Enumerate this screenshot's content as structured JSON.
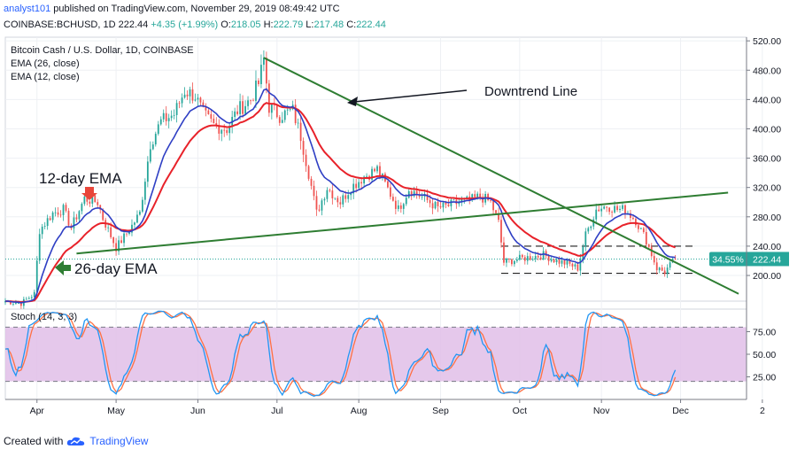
{
  "header": {
    "author": "analyst101",
    "published_text": "published on TradingView.com, November 29, 2019 08:49:42 UTC",
    "symbol": "COINBASE:BCHUSD, 1D",
    "last": "222.44",
    "change": "+4.35 (+1.99%)",
    "open": "218.05",
    "high": "222.79",
    "low": "217.48",
    "close": "222.44",
    "o_label": "O:",
    "h_label": "H:",
    "l_label": "L:",
    "c_label": "C:"
  },
  "footer": {
    "created_with": "Created with",
    "brand": "TradingView"
  },
  "colors": {
    "up": "#26a69a",
    "down": "#ef5350",
    "ema12": "#2f3fc4",
    "ema26": "#e8222a",
    "trend": "#2e7d32",
    "stoch_k": "#2196f3",
    "stoch_d": "#ff7043",
    "stoch_band": "#e1bee7"
  },
  "chart_data": [
    {
      "type": "candlestick",
      "title": "Bitcoin Cash / U.S. Dollar, 1D, COINBASE",
      "legend": [
        "EMA (26, close)",
        "EMA (12, close)"
      ],
      "x_ticks": [
        "Apr",
        "May",
        "Jun",
        "Jul",
        "Aug",
        "Sep",
        "Oct",
        "Nov",
        "Dec",
        "2"
      ],
      "y_ticks": [
        "520.00",
        "480.00",
        "440.00",
        "400.00",
        "360.00",
        "320.00",
        "280.00",
        "240.00",
        "200.00"
      ],
      "ylim": [
        165,
        525
      ],
      "price_tag": "222.44",
      "percent_tag": "34.55%",
      "annotations": {
        "downtrend": "Downtrend Line",
        "ema12": "12-day EMA",
        "ema26": "26-day EMA"
      },
      "close_anchors": [
        [
          "2019-03-20",
          165
        ],
        [
          "2019-03-26",
          162
        ],
        [
          "2019-03-31",
          175
        ],
        [
          "2019-04-02",
          262
        ],
        [
          "2019-04-07",
          285
        ],
        [
          "2019-04-11",
          290
        ],
        [
          "2019-04-14",
          265
        ],
        [
          "2019-04-19",
          305
        ],
        [
          "2019-04-24",
          300
        ],
        [
          "2019-04-26",
          278
        ],
        [
          "2019-05-01",
          238
        ],
        [
          "2019-05-06",
          262
        ],
        [
          "2019-05-10",
          285
        ],
        [
          "2019-05-14",
          380
        ],
        [
          "2019-05-18",
          410
        ],
        [
          "2019-05-23",
          420
        ],
        [
          "2019-05-27",
          452
        ],
        [
          "2019-05-31",
          445
        ],
        [
          "2019-06-03",
          420
        ],
        [
          "2019-06-07",
          405
        ],
        [
          "2019-06-12",
          400
        ],
        [
          "2019-06-16",
          425
        ],
        [
          "2019-06-21",
          440
        ],
        [
          "2019-06-24",
          462
        ],
        [
          "2019-06-26",
          495
        ],
        [
          "2019-06-28",
          430
        ],
        [
          "2019-07-02",
          418
        ],
        [
          "2019-07-07",
          425
        ],
        [
          "2019-07-10",
          390
        ],
        [
          "2019-07-13",
          340
        ],
        [
          "2019-07-16",
          285
        ],
        [
          "2019-07-20",
          320
        ],
        [
          "2019-07-25",
          300
        ],
        [
          "2019-07-29",
          320
        ],
        [
          "2019-08-03",
          335
        ],
        [
          "2019-08-08",
          345
        ],
        [
          "2019-08-12",
          318
        ],
        [
          "2019-08-16",
          290
        ],
        [
          "2019-08-20",
          318
        ],
        [
          "2019-08-26",
          305
        ],
        [
          "2019-08-31",
          292
        ],
        [
          "2019-09-04",
          295
        ],
        [
          "2019-09-08",
          300
        ],
        [
          "2019-09-12",
          302
        ],
        [
          "2019-09-16",
          308
        ],
        [
          "2019-09-20",
          300
        ],
        [
          "2019-09-23",
          272
        ],
        [
          "2019-09-25",
          218
        ],
        [
          "2019-09-30",
          222
        ],
        [
          "2019-10-05",
          225
        ],
        [
          "2019-10-10",
          228
        ],
        [
          "2019-10-15",
          220
        ],
        [
          "2019-10-20",
          215
        ],
        [
          "2019-10-23",
          210
        ],
        [
          "2019-10-26",
          255
        ],
        [
          "2019-10-30",
          290
        ],
        [
          "2019-11-03",
          295
        ],
        [
          "2019-11-07",
          290
        ],
        [
          "2019-11-10",
          290
        ],
        [
          "2019-11-14",
          275
        ],
        [
          "2019-11-18",
          248
        ],
        [
          "2019-11-22",
          210
        ],
        [
          "2019-11-25",
          205
        ],
        [
          "2019-11-29",
          222.44
        ]
      ]
    },
    {
      "type": "line",
      "title": "Stoch (14, 3, 3)",
      "y_ticks": [
        "75.00",
        "50.00",
        "25.00"
      ],
      "ylim": [
        0,
        100
      ],
      "bands": [
        20,
        80
      ]
    }
  ]
}
